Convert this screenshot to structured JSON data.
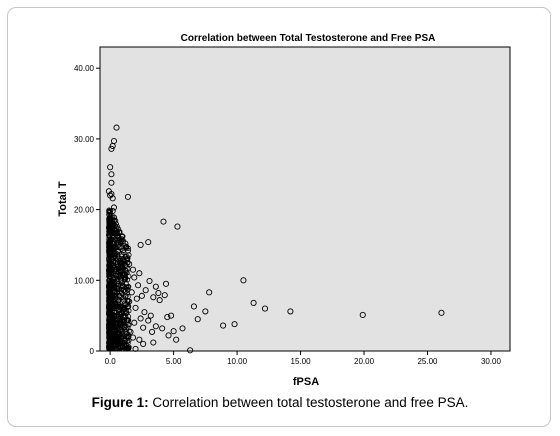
{
  "figure": {
    "caption_label": "Figure 1:",
    "caption_text": " Correlation between total testosterone and free PSA."
  },
  "chart_data": {
    "type": "scatter",
    "title": "Correlation between Total Testosterone and Free PSA",
    "xlabel": "fPSA",
    "ylabel": "Total T",
    "xlim": [
      -0.8,
      31.5
    ],
    "ylim": [
      0,
      43
    ],
    "xticks": [
      "0.0",
      "5.00",
      "10.00",
      "15.00",
      "20.00",
      "25.00",
      "30.00"
    ],
    "yticks": [
      "0",
      "10.00",
      "20.00",
      "30.00",
      "40.00"
    ],
    "grid": false,
    "colors": {
      "plot_background": "#e2e2e2",
      "marker_edge": "#000000"
    },
    "series": [
      {
        "marker": "open-circle",
        "points": [
          [
            0.5,
            31.6
          ],
          [
            0.3,
            29.7
          ],
          [
            0.2,
            29.0
          ],
          [
            0.1,
            28.6
          ],
          [
            0.0,
            26.0
          ],
          [
            0.1,
            25.0
          ],
          [
            0.1,
            23.8
          ],
          [
            -0.1,
            22.6
          ],
          [
            0.1,
            22.2
          ],
          [
            0.0,
            22.0
          ],
          [
            0.2,
            21.6
          ],
          [
            1.4,
            21.8
          ],
          [
            0.3,
            20.3
          ],
          [
            0.2,
            19.8
          ],
          [
            0.3,
            18.9
          ],
          [
            0.4,
            18.4
          ],
          [
            4.2,
            18.3
          ],
          [
            5.3,
            17.6
          ],
          [
            0.6,
            16.3
          ],
          [
            0.9,
            15.8
          ],
          [
            1.2,
            15.2
          ],
          [
            2.4,
            15.0
          ],
          [
            3.0,
            15.4
          ],
          [
            1.4,
            14.2
          ],
          [
            0.9,
            13.7
          ],
          [
            1.0,
            12.8
          ],
          [
            1.5,
            12.3
          ],
          [
            1.8,
            11.5
          ],
          [
            2.3,
            11.0
          ],
          [
            1.9,
            10.4
          ],
          [
            3.1,
            9.9
          ],
          [
            2.2,
            9.3
          ],
          [
            1.0,
            9.2
          ],
          [
            3.6,
            9.1
          ],
          [
            4.4,
            9.5
          ],
          [
            2.8,
            8.6
          ],
          [
            1.7,
            8.3
          ],
          [
            3.8,
            8.2
          ],
          [
            4.3,
            7.9
          ],
          [
            2.5,
            7.8
          ],
          [
            3.4,
            7.6
          ],
          [
            2.1,
            7.4
          ],
          [
            3.9,
            7.2
          ],
          [
            1.5,
            7.0
          ],
          [
            1.2,
            6.5
          ],
          [
            2.0,
            6.1
          ],
          [
            2.7,
            5.5
          ],
          [
            3.2,
            5.0
          ],
          [
            4.5,
            4.8
          ],
          [
            4.8,
            5.0
          ],
          [
            2.4,
            4.6
          ],
          [
            1.9,
            4.0
          ],
          [
            3.0,
            4.3
          ],
          [
            3.6,
            3.5
          ],
          [
            2.6,
            3.3
          ],
          [
            4.1,
            3.2
          ],
          [
            3.3,
            2.7
          ],
          [
            1.6,
            2.7
          ],
          [
            5.0,
            2.8
          ],
          [
            4.6,
            2.2
          ],
          [
            1.8,
            1.9
          ],
          [
            2.3,
            1.6
          ],
          [
            2.6,
            1.0
          ],
          [
            5.2,
            1.6
          ],
          [
            3.4,
            1.2
          ],
          [
            2.0,
            0.3
          ],
          [
            1.1,
            0.9
          ],
          [
            6.3,
            0.1
          ],
          [
            5.7,
            3.2
          ],
          [
            6.9,
            4.5
          ],
          [
            6.6,
            6.3
          ],
          [
            7.8,
            8.3
          ],
          [
            7.5,
            5.6
          ],
          [
            8.9,
            3.6
          ],
          [
            9.8,
            3.8
          ],
          [
            10.5,
            10.0
          ],
          [
            11.3,
            6.8
          ],
          [
            12.2,
            6.0
          ],
          [
            14.2,
            5.6
          ],
          [
            19.9,
            5.1
          ],
          [
            26.1,
            5.4
          ]
        ]
      }
    ]
  }
}
